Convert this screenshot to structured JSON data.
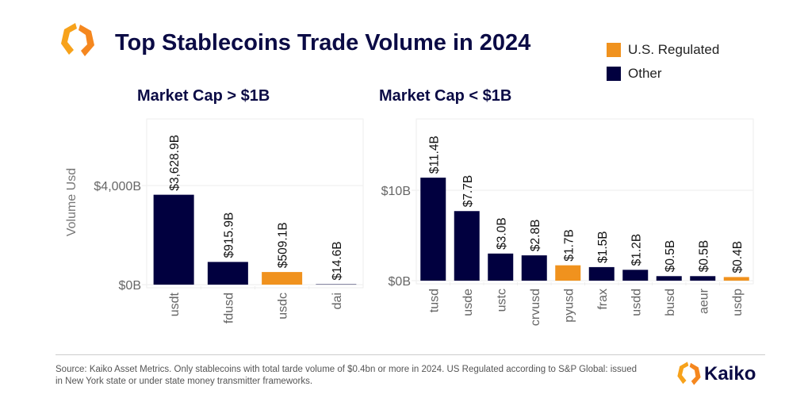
{
  "header": {
    "title": "Top Stablecoins Trade Volume in 2024"
  },
  "legend": [
    {
      "label": "U.S. Regulated",
      "color": "#f0921e"
    },
    {
      "label": "Other",
      "color": "#01003f"
    }
  ],
  "chart_data": [
    {
      "type": "bar",
      "title": "Market Cap > $1B",
      "ylabel": "Volume Usd",
      "xlabel": "",
      "ylim": [
        0,
        6690
      ],
      "yticks": [
        {
          "value": 0,
          "label": "$0B"
        },
        {
          "value": 4000,
          "label": "$4,000B"
        }
      ],
      "grid": true,
      "categories": [
        "usdt",
        "fdusd",
        "usdc",
        "dai"
      ],
      "values": [
        3628.9,
        915.9,
        509.1,
        14.6
      ],
      "data_labels": [
        "$3,628.9B",
        "$915.9B",
        "$509.1B",
        "$14.6B"
      ],
      "regulated": [
        false,
        false,
        true,
        false
      ]
    },
    {
      "type": "bar",
      "title": "Market Cap < $1B",
      "ylabel": "",
      "xlabel": "",
      "ylim": [
        0,
        17.9
      ],
      "yticks": [
        {
          "value": 0,
          "label": "$0B"
        },
        {
          "value": 10,
          "label": "$10B"
        }
      ],
      "grid": true,
      "categories": [
        "tusd",
        "usde",
        "ustc",
        "crvusd",
        "pyusd",
        "frax",
        "usdd",
        "busd",
        "aeur",
        "usdp"
      ],
      "values": [
        11.4,
        7.7,
        3.0,
        2.8,
        1.7,
        1.5,
        1.2,
        0.5,
        0.5,
        0.4
      ],
      "data_labels": [
        "$11.4B",
        "$7.7B",
        "$3.0B",
        "$2.8B",
        "$1.7B",
        "$1.5B",
        "$1.2B",
        "$0.5B",
        "$0.5B",
        "$0.4B"
      ],
      "regulated": [
        false,
        false,
        false,
        false,
        true,
        false,
        false,
        false,
        false,
        true
      ]
    }
  ],
  "footer": {
    "source": "Source: Kaiko Asset Metrics. Only stablecoins with total tarde volume of $0.4bn or more in 2024. US Regulated according to S&P Global: issued in New York state or under state money transmitter frameworks.",
    "brand": "Kaiko"
  }
}
